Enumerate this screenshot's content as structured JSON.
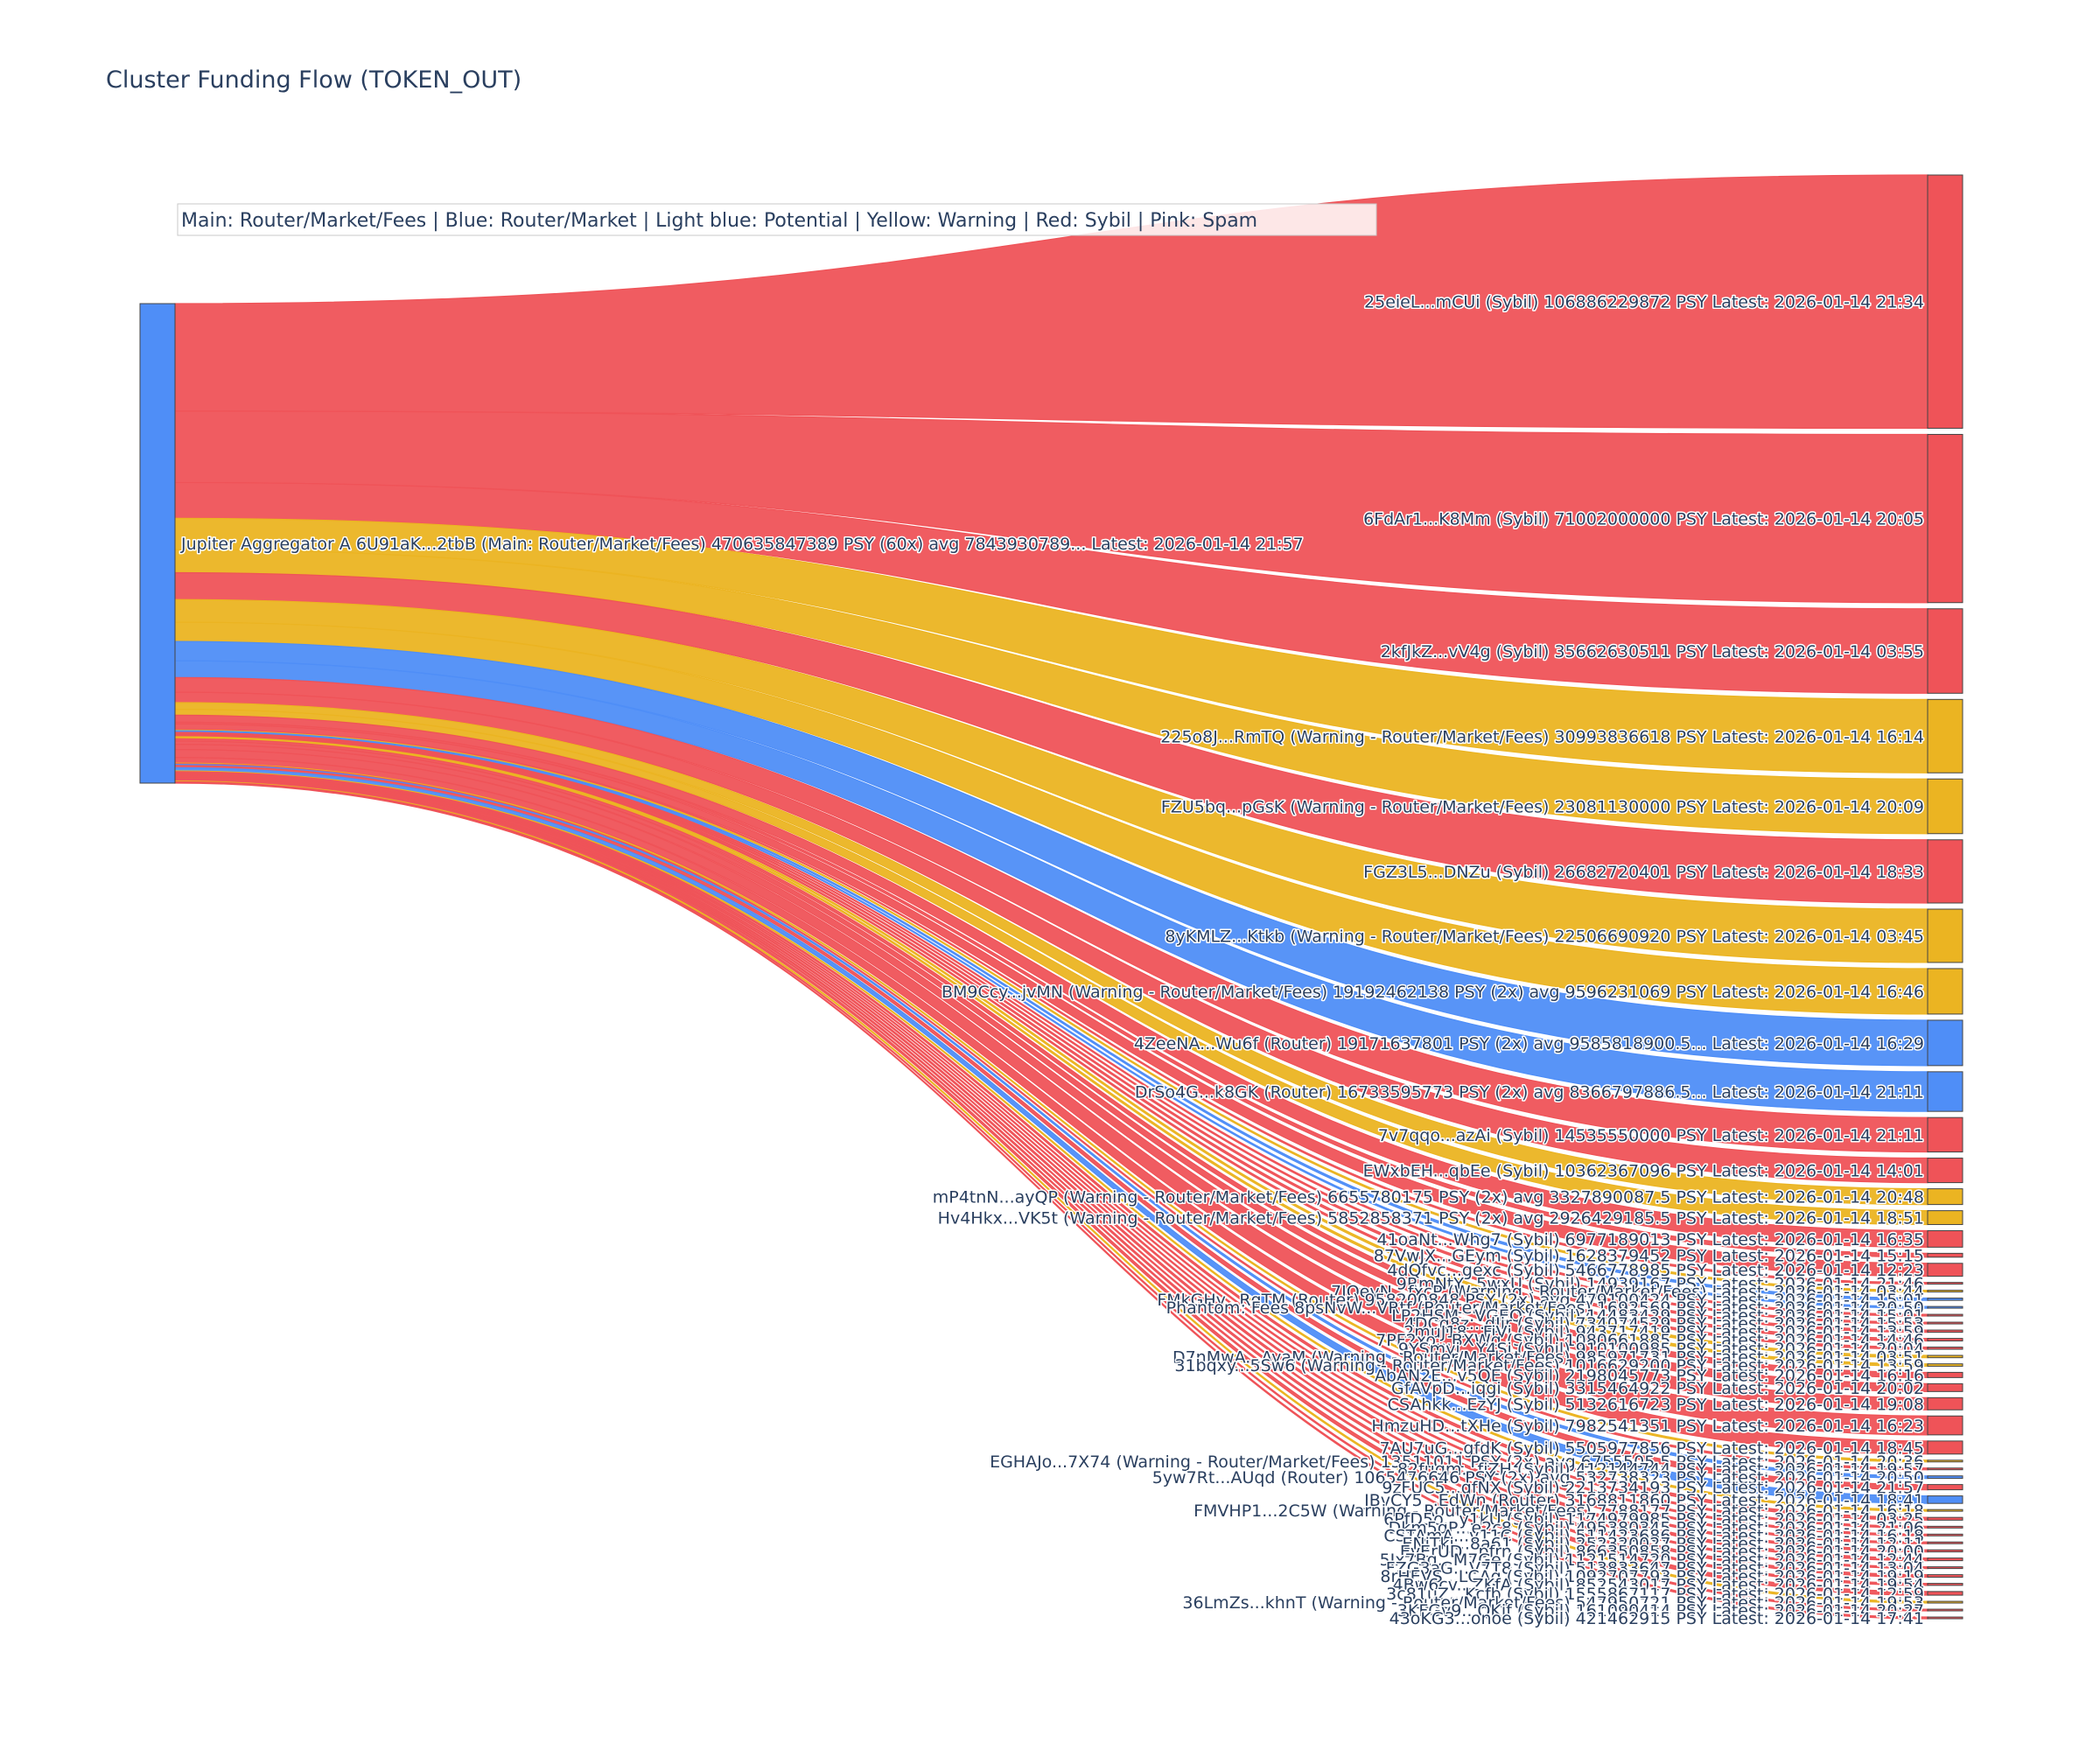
{
  "chart_data": {
    "type": "sankey",
    "title": "Cluster Funding Flow (TOKEN_OUT)",
    "legend_text": "Main: Router/Market/Fees  |  Blue: Router/Market | Light blue: Potential | Yellow: Warning | Red: Sybil | Pink: Spam",
    "legend_placement": "top-left",
    "colors": {
      "main": "#4f8ef7",
      "router": "#4f8ef7",
      "warning": "#ebb422",
      "sybil": "#ef5358"
    },
    "source": {
      "label": "Jupiter Aggregator A 6U91aK...2tbB (Main: Router/Market/Fees) 470635847389 PSY (60x) avg 7843930789... Latest: 2026-01-14 21:57",
      "category": "main"
    },
    "targets": [
      {
        "label": "25eieL...mCUi (Sybil) 106886229872 PSY Latest: 2026-01-14 21:34",
        "value": 106886229872,
        "category": "sybil"
      },
      {
        "label": "6FdAr1...K8Mm (Sybil) 71002000000 PSY Latest: 2026-01-14 20:05",
        "value": 71002000000,
        "category": "sybil"
      },
      {
        "label": "2kfJkZ...vV4g (Sybil) 35662630511 PSY Latest: 2026-01-14 03:55",
        "value": 35662630511,
        "category": "sybil"
      },
      {
        "label": "225o8J...RmTQ (Warning - Router/Market/Fees) 30993836618 PSY Latest: 2026-01-14 16:14",
        "value": 30993836618,
        "category": "warning"
      },
      {
        "label": "FZU5bq...pGsK (Warning - Router/Market/Fees) 23081130000 PSY Latest: 2026-01-14 20:09",
        "value": 23081130000,
        "category": "warning"
      },
      {
        "label": "FGZ3L5...DNZu (Sybil) 26682720401 PSY Latest: 2026-01-14 18:33",
        "value": 26682720401,
        "category": "sybil"
      },
      {
        "label": "8yKMLZ...Ktkb (Warning - Router/Market/Fees) 22506690920 PSY Latest: 2026-01-14 03:45",
        "value": 22506690920,
        "category": "warning"
      },
      {
        "label": "BM9Ccy...jvMN (Warning - Router/Market/Fees) 19192462138 PSY (2x) avg 9596231069 PSY Latest: 2026-01-14 16:46",
        "value": 19192462138,
        "category": "warning"
      },
      {
        "label": "4ZeeNA...Wu6f (Router) 19171637801 PSY (2x) avg 9585818900.5... Latest: 2026-01-14 16:29",
        "value": 19171637801,
        "category": "router"
      },
      {
        "label": "DrSo4G...k8GK (Router) 16733595773 PSY (2x) avg 8366797886.5... Latest: 2026-01-14 21:11",
        "value": 16733595773,
        "category": "router"
      },
      {
        "label": "7v7qqo...azAi (Sybil) 14535550000 PSY Latest: 2026-01-14 21:11",
        "value": 14535550000,
        "category": "sybil"
      },
      {
        "label": "EWxbEH...qbEe (Sybil) 10362367096 PSY Latest: 2026-01-14 14:01",
        "value": 10362367096,
        "category": "sybil"
      },
      {
        "label": "mP4tnN...ayQP (Warning - Router/Market/Fees) 6655780175 PSY (2x) avg 3327890087.5 PSY Latest: 2026-01-14 20:48",
        "value": 6655780175,
        "category": "warning"
      },
      {
        "label": "Hv4Hkx...VK5t (Warning - Router/Market/Fees) 5852858371 PSY (2x) avg 2926429185.5 PSY Latest: 2026-01-14 18:51",
        "value": 5852858371,
        "category": "warning"
      },
      {
        "label": "41oaNt...Whg7 (Sybil) 6977189013 PSY Latest: 2026-01-14 16:35",
        "value": 6977189013,
        "category": "sybil"
      },
      {
        "label": "87VwJX...GEym (Sybil) 1628379452 PSY Latest: 2026-01-14 15:15",
        "value": 1628379452,
        "category": "sybil"
      },
      {
        "label": "4dQfvc...gexc (Sybil) 5466778985 PSY Latest: 2026-01-14 12:23",
        "value": 5466778985,
        "category": "sybil"
      },
      {
        "label": "9RmNtY...5wxU (Sybil) 14939167 PSY Latest: 2026-01-14 21:46",
        "value": 14939167,
        "category": "sybil"
      },
      {
        "label": "7JQeyN...fxcP (Warning - Router/Market/Fees) Latest: 2026-01-14 03:44",
        "value": 0,
        "category": "warning"
      },
      {
        "label": "FMkGHy...RgTM (Router) 958200848 PSY (2x) avg 479100424 PSY Latest: 2026-01-14 15:01",
        "value": 958200848,
        "category": "router"
      },
      {
        "label": "Phantom: Fees 8psNvW...VRtf (Router/Market/Fees) 1692569 PSY Latest: 2026-01-14 20:50",
        "value": 1692569,
        "category": "router"
      },
      {
        "label": "LP2HSM...VGEQ (Sybil) 14483429 PSY Latest: 2026-01-14 15:01",
        "value": 14483429,
        "category": "sybil"
      },
      {
        "label": "4DCq8z...dJir (Sybil) 734074529 PSY Latest: 2026-01-14 15:53",
        "value": 734074529,
        "category": "sybil"
      },
      {
        "label": "2muJ18...FiVj (Sybil) 943717419 PSY Latest: 2026-01-14 13:59",
        "value": 943717419,
        "category": "sybil"
      },
      {
        "label": "7PF2xo...BXWq (Sybil) 1080661885 PSY Latest: 2026-01-14 14:46",
        "value": 1080661885,
        "category": "sybil"
      },
      {
        "label": "9YSmyj...Y4Sj (Sybil) 910100985 PSY Latest: 2026-01-14 20:04",
        "value": 910100985,
        "category": "sybil"
      },
      {
        "label": "D7nMwA...AyaM (Warning - Router/Market/Fees) 985971731 PSY Latest: 2026-01-14 03:51",
        "value": 985971731,
        "category": "warning"
      },
      {
        "label": "31bqxy...5Sw6 (Warning - Router/Market/Fees) 1016629200 PSY Latest: 2026-01-14 13:59",
        "value": 1016629200,
        "category": "warning"
      },
      {
        "label": "AbAN2E...v5QE (Sybil) 2198045773 PSY Latest: 2026-01-14 16:16",
        "value": 2198045773,
        "category": "sybil"
      },
      {
        "label": "GfAVpD...iqgi (Sybil) 3315464922 PSY Latest: 2026-01-14 20:02",
        "value": 3315464922,
        "category": "sybil"
      },
      {
        "label": "CSAhkk...EzYJ (Sybil) 5132616723 PSY Latest: 2026-01-14 19:08",
        "value": 5132616723,
        "category": "sybil"
      },
      {
        "label": "HmzuHD...tXHe (Sybil) 7982541351 PSY Latest: 2026-01-14 16:23",
        "value": 7982541351,
        "category": "sybil"
      },
      {
        "label": "7AU7uG...gfdK (Sybil) 5505977856 PSY Latest: 2026-01-14 18:45",
        "value": 5505977856,
        "category": "sybil"
      },
      {
        "label": "EGHAJo...7X74 (Warning - Router/Market/Fees) 13511011 PSY (2x) avg 6755505.5 PSY Latest: 2026-01-14 20:36",
        "value": 13511011,
        "category": "warning"
      },
      {
        "label": "82fugm...fjZH (Sybil) 412144744 PSY Latest: 2026-01-14 19:57",
        "value": 412144744,
        "category": "sybil"
      },
      {
        "label": "5yw7Rt...AUqd (Router) 1065476646 PSY (2x) avg 532738323 PSY Latest: 2026-01-14 20:50",
        "value": 1065476646,
        "category": "router"
      },
      {
        "label": "9zFUC5...qfNX (Sybil) 2213734193 PSY Latest: 2026-01-14 21:57",
        "value": 2213734193,
        "category": "sybil"
      },
      {
        "label": "JBvCY5...EdWn (Router) 3168811860 PSY Latest: 2026-01-14 18:41",
        "value": 3168811860,
        "category": "router"
      },
      {
        "label": "FMVHP1...2C5W (Warning - Router/Market/Fees) 7788177 PSY Latest: 2026-01-14 16:18",
        "value": 7788177,
        "category": "warning"
      },
      {
        "label": "6PfD5o...y1kU (Sybil) 1174979985 PSY Latest: 2026-01-14 03:25",
        "value": 1174979985,
        "category": "sybil"
      },
      {
        "label": "Dkm5gP...e2c8 (Sybil) 495380345 PSY Latest: 2026-01-14 21:06",
        "value": 495380345,
        "category": "sybil"
      },
      {
        "label": "CSTAmA...y11C (Sybil) 511423686 PSY Latest: 2026-01-14 16:18",
        "value": 511423686,
        "category": "sybil"
      },
      {
        "label": "ENiTkj...8a61 (Sybil) 252320027 PSY Latest: 2026-01-14 12:11",
        "value": 252320027,
        "category": "sybil"
      },
      {
        "label": "EvErUD...pfrn (Sybil) 866350858 PSY Latest: 2026-01-14 20:00",
        "value": 866350858,
        "category": "sybil"
      },
      {
        "label": "5Jx7Bq...M7Ge (Sybil) 1121514720 PSY Latest: 2026-01-14 12:44",
        "value": 1121514720,
        "category": "sybil"
      },
      {
        "label": "FZG3aG...V7T8 (Sybil) 513833647 PSY Latest: 2026-01-14 13:04",
        "value": 513833647,
        "category": "sybil"
      },
      {
        "label": "8rHEVS...LCAg (Sybil) 1092707793 PSY Latest: 2026-01-14 19:19",
        "value": 1092707793,
        "category": "sybil"
      },
      {
        "label": "4Bw6cv...ZKfA (Sybil) 852543017 PSY Latest: 2026-01-14 19:54",
        "value": 852543017,
        "category": "sybil"
      },
      {
        "label": "3c81uZ...Kcfb (Sybil) 1555867117 PSY Latest: 2026-01-14 12:59",
        "value": 1555867117,
        "category": "sybil"
      },
      {
        "label": "36LmZs...khnT (Warning - Router/Market/Fees) 547950721 PSY Latest: 2026-01-14 19:53",
        "value": 547950721,
        "category": "warning"
      },
      {
        "label": "3KFGv9...QKjf (Sybil) 161090414 PSY Latest: 2026-01-14 20:27",
        "value": 161090414,
        "category": "sybil"
      },
      {
        "label": "43oKG3...onoe (Sybil) 421462915 PSY Latest: 2026-01-14 17:41",
        "value": 421462915,
        "category": "sybil"
      }
    ]
  }
}
